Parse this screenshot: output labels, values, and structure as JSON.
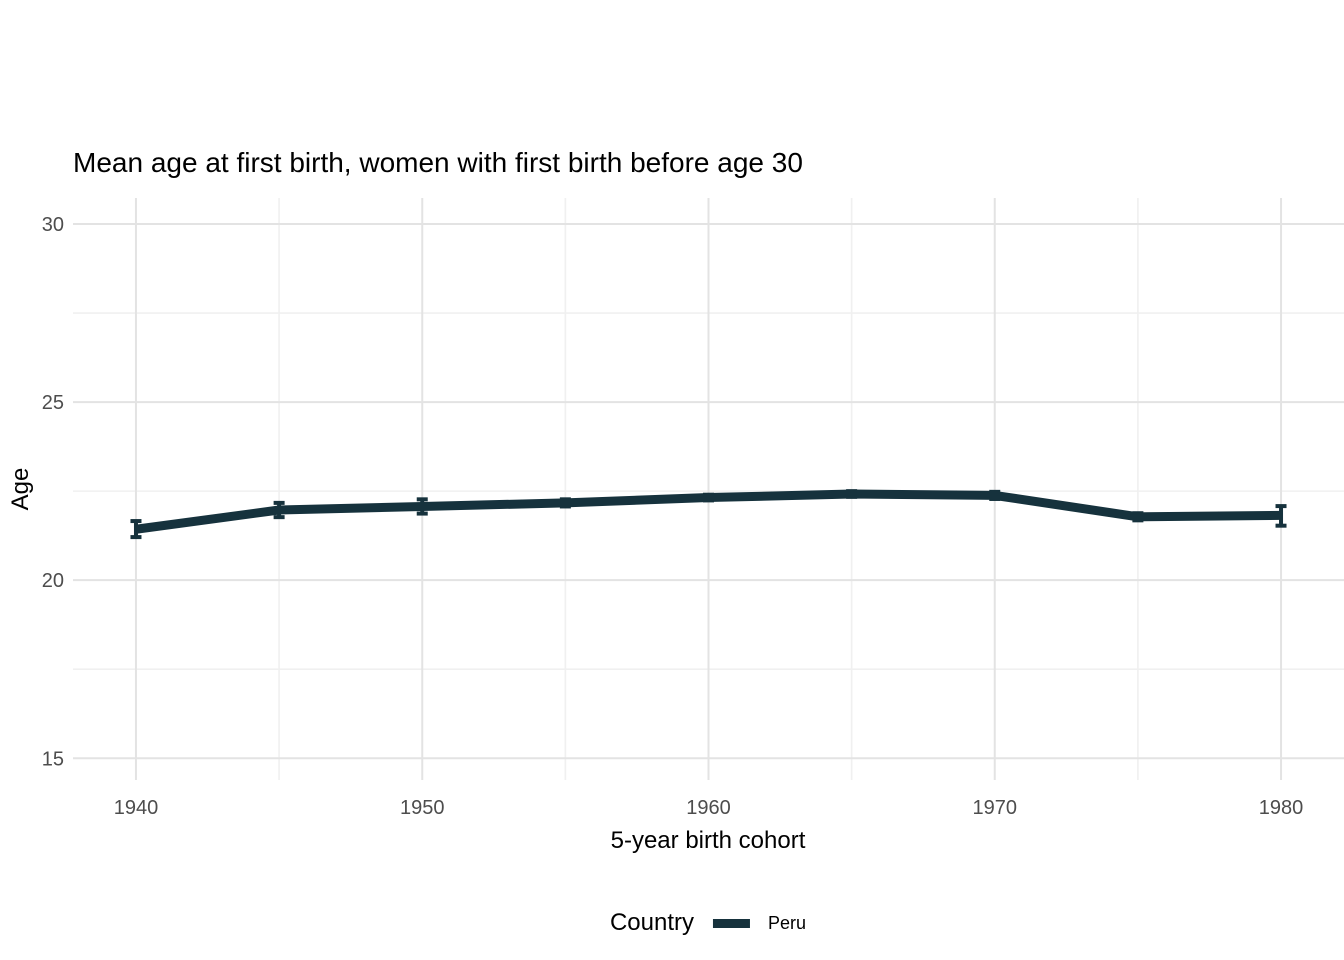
{
  "chart_data": {
    "type": "line",
    "title": "Mean age at first birth, women with first birth before age 30",
    "xlabel": "5-year birth cohort",
    "ylabel": "Age",
    "xlim": [
      1937.8,
      1982.2
    ],
    "ylim": [
      14.39,
      30.73
    ],
    "x_major_ticks": [
      1940,
      1950,
      1960,
      1970,
      1980
    ],
    "x_minor_ticks": [
      1945,
      1955,
      1965,
      1975
    ],
    "y_major_ticks": [
      15,
      20,
      25,
      30
    ],
    "y_minor_ticks": [
      17.5,
      22.5,
      27.5
    ],
    "grid": "major-and-minor",
    "legend": {
      "title": "Country",
      "position": "bottom",
      "entries": [
        {
          "label": "Peru",
          "color": "#16323D"
        }
      ]
    },
    "series": [
      {
        "name": "Peru",
        "color": "#16323D",
        "x": [
          1940,
          1945,
          1950,
          1955,
          1960,
          1965,
          1970,
          1975,
          1980
        ],
        "y": [
          21.43,
          21.97,
          22.07,
          22.17,
          22.32,
          22.42,
          22.38,
          21.78,
          21.82
        ],
        "y_low": [
          21.21,
          21.77,
          21.87,
          22.07,
          22.24,
          22.34,
          22.28,
          21.68,
          21.53
        ],
        "y_high": [
          21.66,
          22.17,
          22.27,
          22.27,
          22.4,
          22.5,
          22.48,
          21.88,
          22.08
        ]
      }
    ]
  },
  "colors": {
    "background": "#FFFFFF",
    "line": "#16323D",
    "grid_major": "#E3E3E3",
    "grid_minor": "#F0F0F0",
    "tick_label": "#4D4D4D",
    "text": "#000000"
  }
}
